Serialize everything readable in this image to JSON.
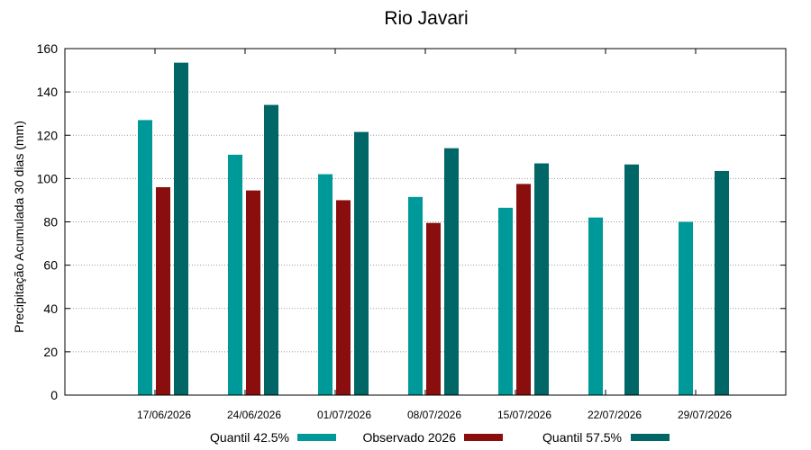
{
  "chart_data": {
    "type": "bar",
    "title": "Rio Javari",
    "xlabel": "",
    "ylabel": "Precipitação Acumulada 30 dias (mm)",
    "ylim": [
      0,
      160
    ],
    "yticks": [
      0,
      20,
      40,
      60,
      80,
      100,
      120,
      140,
      160
    ],
    "grid": true,
    "legend_position": "bottom",
    "categories": [
      "17/06/2026",
      "24/06/2026",
      "01/07/2026",
      "08/07/2026",
      "15/07/2026",
      "22/07/2026",
      "29/07/2026"
    ],
    "series": [
      {
        "name": "Quantil 42.5%",
        "color": "#009999",
        "values": [
          127,
          111,
          102,
          91.5,
          86.5,
          82,
          80
        ]
      },
      {
        "name": "Observado 2026",
        "color": "#8B0E0E",
        "values": [
          96,
          94.5,
          90,
          79.5,
          97.5,
          null,
          null
        ]
      },
      {
        "name": "Quantil 57.5%",
        "color": "#006666",
        "values": [
          153.5,
          134,
          121.5,
          114,
          107,
          106.5,
          103.5
        ]
      }
    ]
  }
}
